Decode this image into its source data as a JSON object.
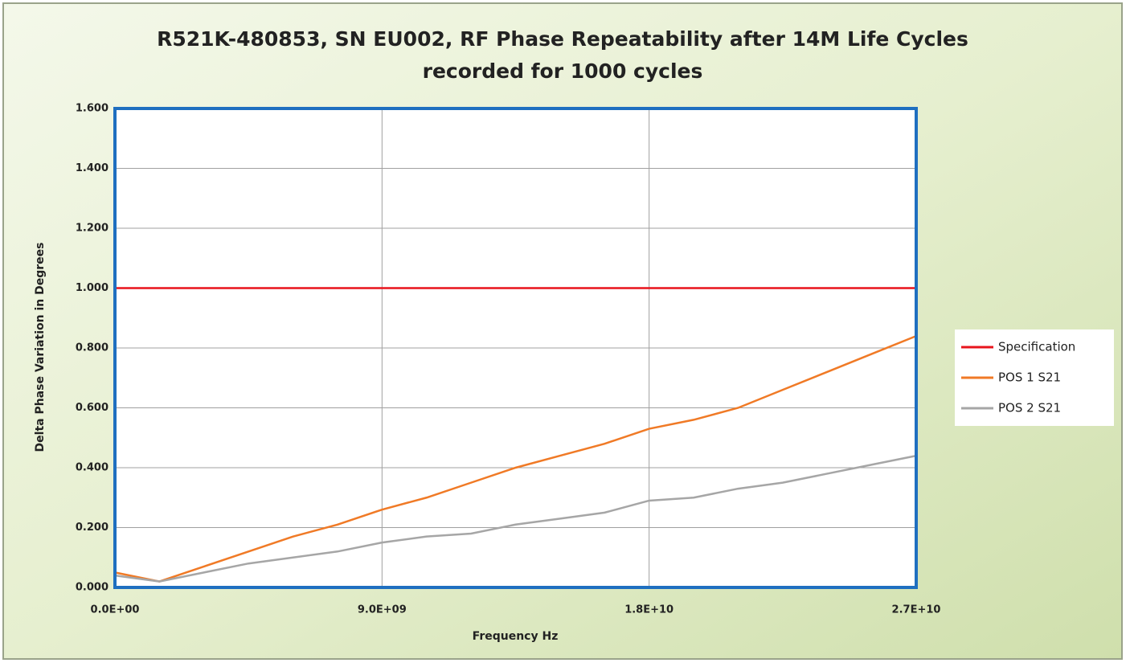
{
  "chart_data": {
    "type": "line",
    "title": "R521K-480853, SN EU002, RF Phase Repeatability after 14M Life Cycles",
    "subtitle": "recorded for 1000 cycles",
    "x_label": "Frequency Hz",
    "y_label": "Delta Phase Variation in Degrees",
    "x": [
      0,
      1500000000,
      3000000000,
      4500000000,
      6000000000,
      7500000000,
      9000000000,
      10500000000,
      12000000000,
      13500000000,
      15000000000,
      16500000000,
      18000000000,
      19500000000,
      21000000000,
      22500000000,
      24000000000,
      25500000000,
      27000000000
    ],
    "series": [
      {
        "name": "Specification",
        "color": "#e8141c",
        "values": [
          1,
          1,
          1,
          1,
          1,
          1,
          1,
          1,
          1,
          1,
          1,
          1,
          1,
          1,
          1,
          1,
          1,
          1,
          1
        ]
      },
      {
        "name": "POS 1 S21",
        "color": "#f07a26",
        "values": [
          0.05,
          0.02,
          0.07,
          0.12,
          0.17,
          0.21,
          0.26,
          0.3,
          0.35,
          0.4,
          0.44,
          0.48,
          0.53,
          0.56,
          0.6,
          0.66,
          0.72,
          0.78,
          0.84
        ]
      },
      {
        "name": "POS 2 S21",
        "color": "#a6a6a6",
        "values": [
          0.04,
          0.02,
          0.05,
          0.08,
          0.1,
          0.12,
          0.15,
          0.17,
          0.18,
          0.21,
          0.23,
          0.25,
          0.29,
          0.3,
          0.33,
          0.35,
          0.38,
          0.41,
          0.44
        ]
      }
    ],
    "xlim": [
      0,
      27000000000
    ],
    "xticks": [
      {
        "value": 0,
        "label": "0.0E+00"
      },
      {
        "value": 9000000000,
        "label": "9.0E+09"
      },
      {
        "value": 18000000000,
        "label": "1.8E+10"
      },
      {
        "value": 27000000000,
        "label": "2.7E+10"
      }
    ],
    "ylim": [
      0,
      1.6
    ],
    "yticks": [
      {
        "value": 0,
        "label": "0.000"
      },
      {
        "value": 0.2,
        "label": "0.200"
      },
      {
        "value": 0.4,
        "label": "0.400"
      },
      {
        "value": 0.6,
        "label": "0.600"
      },
      {
        "value": 0.8,
        "label": "0.800"
      },
      {
        "value": 1,
        "label": "1.000"
      },
      {
        "value": 1.2,
        "label": "1.200"
      },
      {
        "value": 1.4,
        "label": "1.400"
      },
      {
        "value": 1.6,
        "label": "1.600"
      }
    ],
    "grid": true,
    "legend": "right"
  }
}
